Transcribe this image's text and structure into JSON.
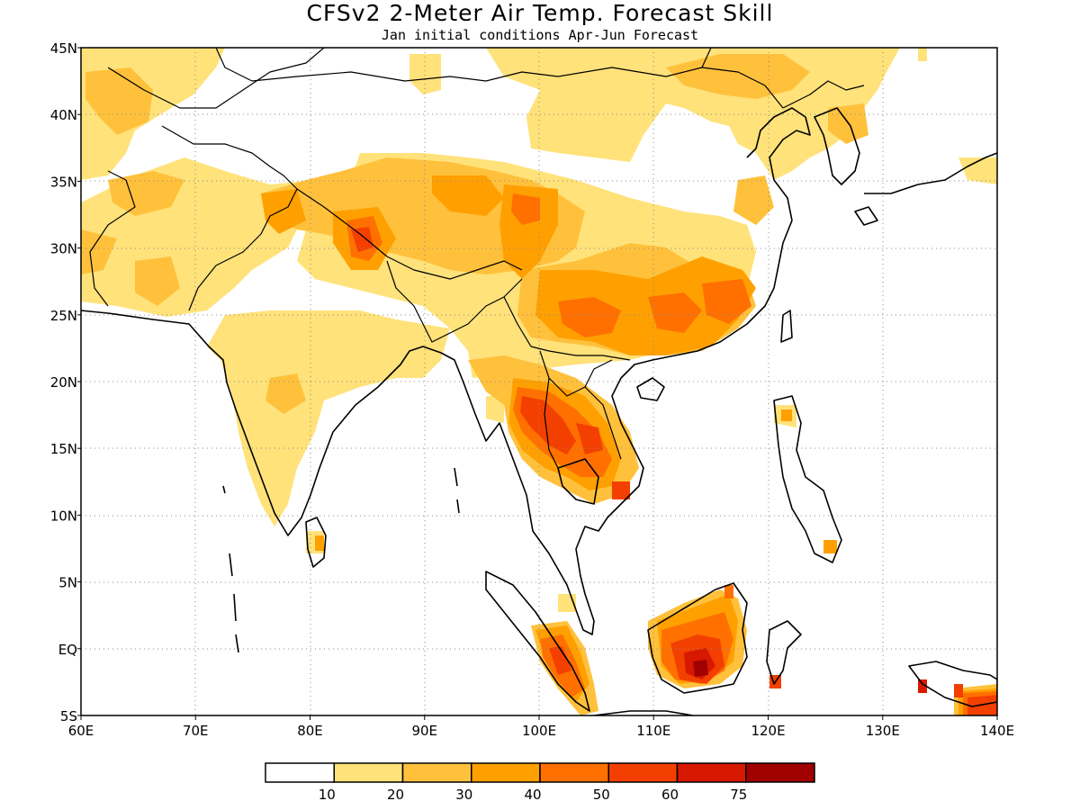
{
  "title": "CFSv2 2-Meter Air Temp. Forecast Skill",
  "subtitle": "Jan initial conditions   Apr-Jun Forecast",
  "map": {
    "lon_range": [
      60,
      140
    ],
    "lat_range": [
      -5,
      45
    ],
    "x_ticks": [
      "60E",
      "70E",
      "80E",
      "90E",
      "100E",
      "110E",
      "120E",
      "130E",
      "140E"
    ],
    "y_ticks": [
      "5S",
      "EQ",
      "5N",
      "10N",
      "15N",
      "20N",
      "25N",
      "30N",
      "35N",
      "40N",
      "45N"
    ],
    "gridlines": "dotted"
  },
  "colorbar": {
    "labels": [
      "10",
      "20",
      "30",
      "40",
      "50",
      "60",
      "75"
    ],
    "colors": [
      "#ffffff",
      "#ffe27a",
      "#ffc13c",
      "#ffa000",
      "#ff7000",
      "#f34000",
      "#d81800",
      "#a00000"
    ]
  }
}
